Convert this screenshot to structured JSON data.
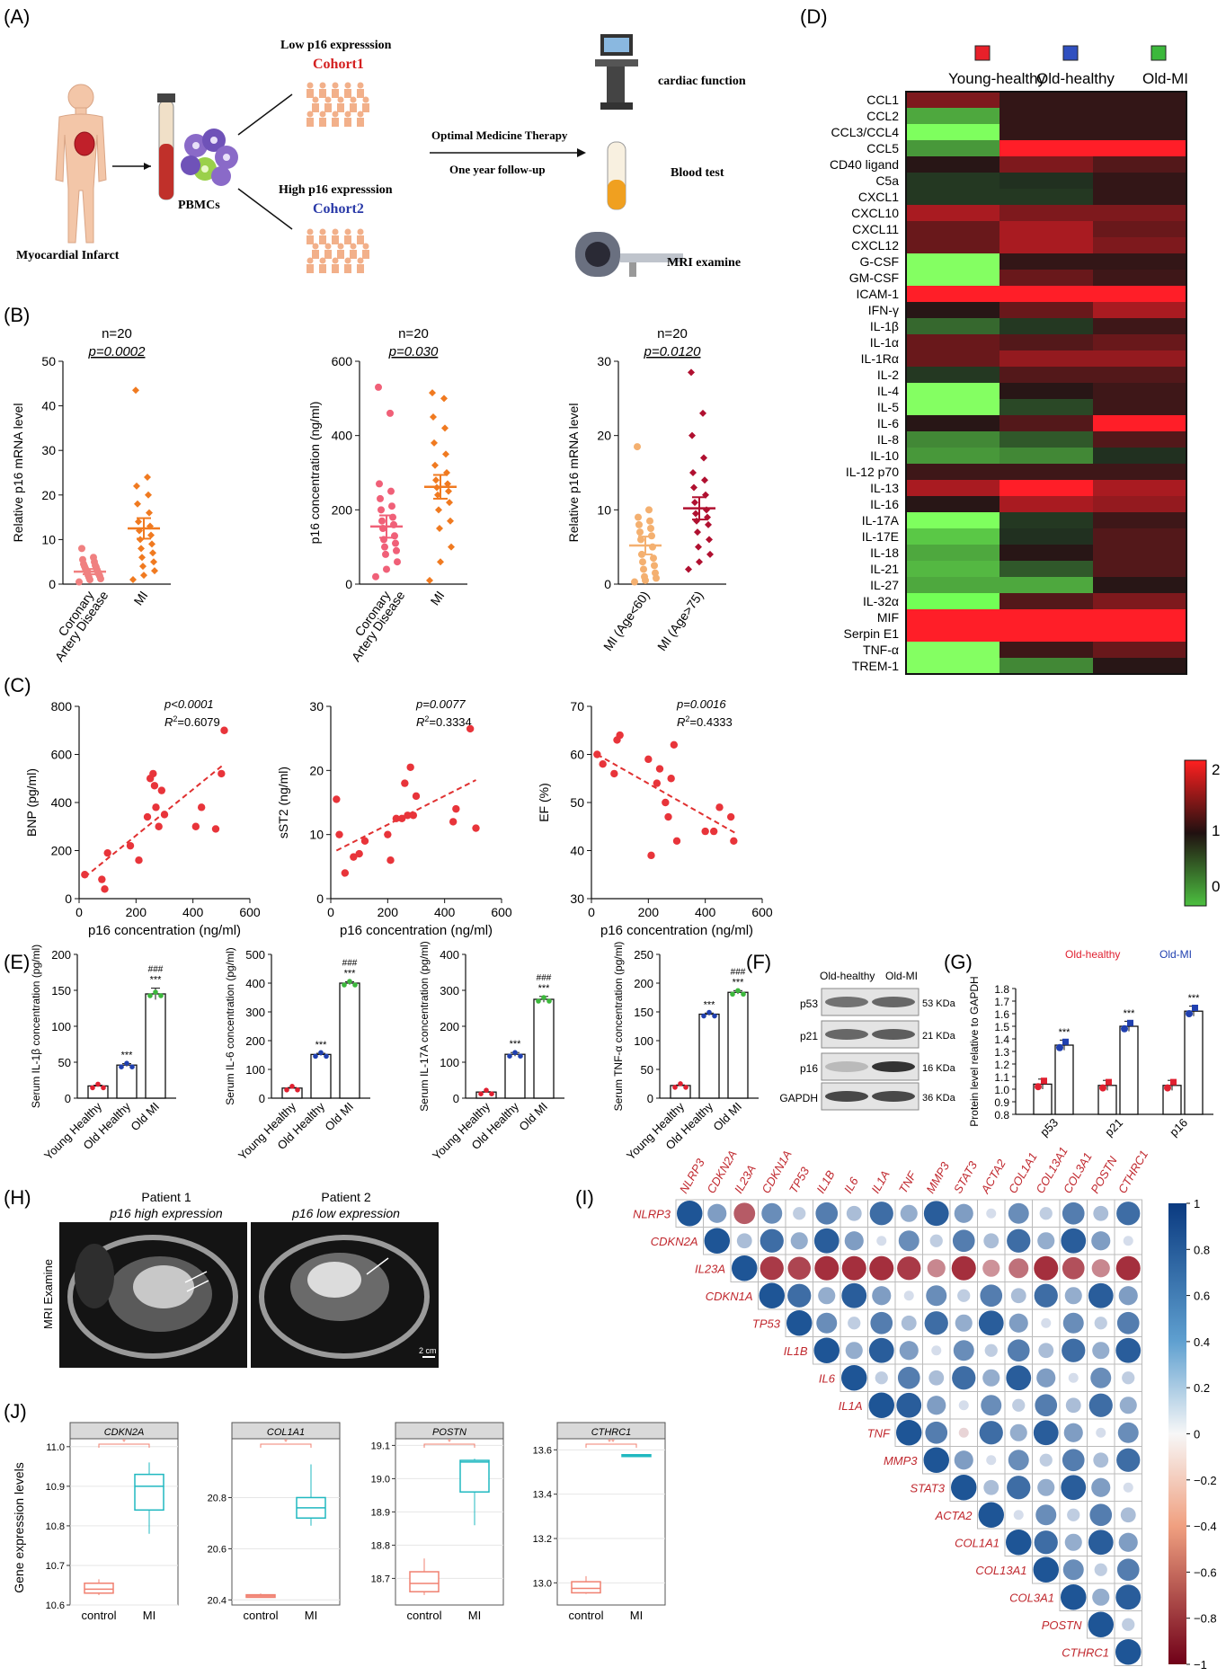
{
  "panel_labels": {
    "A": "(A)",
    "B": "(B)",
    "C": "(C)",
    "D": "(D)",
    "E": "(E)",
    "F": "(F)",
    "G": "(G)",
    "H": "(H)",
    "I": "(I)",
    "J": "(J)"
  },
  "panelA": {
    "myocardial": "Myocardial Infarct",
    "pbmcs": "PBMCs",
    "low": "Low p16 expresssion",
    "cohort1": "Cohort1",
    "high": "High p16 expresssion",
    "cohort2": "Cohort2",
    "therapy": "Optimal Medicine Therapy",
    "followup": "One year follow-up",
    "cardiac": "cardiac function",
    "blood": "Blood test",
    "mri": "MRI examine",
    "colors": {
      "cohort1": "#d42020",
      "cohort2": "#2a3aa8"
    }
  },
  "panelB": [
    {
      "n": "n=20",
      "p": "p=0.0002",
      "ylabel": "Relative p16 mRNA level",
      "yticks": [
        0,
        10,
        20,
        30,
        40,
        50
      ],
      "ymax": 50,
      "groups": [
        {
          "label": [
            "Coronary",
            "Artery Disease"
          ],
          "color": "#f08080",
          "mean": 2.8,
          "sem": 0.6,
          "points": [
            0.5,
            1,
            1.2,
            1.5,
            1.8,
            2,
            2.2,
            2.5,
            2.7,
            3,
            3.2,
            3.5,
            3.8,
            4,
            4.2,
            4.5,
            5,
            5.5,
            6,
            8
          ]
        },
        {
          "label": [
            "MI"
          ],
          "color": "#f07a20",
          "mean": 12.5,
          "sem": 2.3,
          "points": [
            1,
            2,
            3,
            4,
            5,
            6,
            7,
            8,
            9,
            10,
            11,
            12,
            13,
            14,
            16,
            18,
            20,
            22,
            24,
            43.5
          ]
        }
      ]
    },
    {
      "n": "n=20",
      "p": "p=0.030",
      "ylabel": "p16 concentration (ng/ml)",
      "yticks": [
        0,
        200,
        400,
        600
      ],
      "ymax": 600,
      "groups": [
        {
          "label": [
            "Coronary",
            "Artery Disease"
          ],
          "color": "#f06078",
          "mean": 155,
          "sem": 30,
          "points": [
            20,
            40,
            60,
            80,
            90,
            100,
            110,
            120,
            130,
            150,
            160,
            170,
            180,
            200,
            210,
            230,
            250,
            270,
            460,
            530
          ]
        },
        {
          "label": [
            "MI"
          ],
          "color": "#f07a20",
          "mean": 262,
          "sem": 32,
          "points": [
            10,
            60,
            100,
            150,
            170,
            200,
            220,
            240,
            250,
            260,
            270,
            280,
            300,
            320,
            350,
            380,
            420,
            450,
            500,
            515
          ]
        }
      ]
    },
    {
      "n": "n=20",
      "p": "p=0.0120",
      "ylabel": "Relative p16 mRNA level",
      "yticks": [
        0,
        10,
        20,
        30
      ],
      "ymax": 30,
      "groups": [
        {
          "label": [
            "MI (Age<60)"
          ],
          "color": "#f4b070",
          "mean": 5.2,
          "sem": 1.2,
          "points": [
            0.3,
            0.5,
            0.8,
            1,
            1.5,
            2,
            2.5,
            3,
            3.5,
            4,
            5,
            6,
            6.5,
            7,
            7.5,
            8,
            8.5,
            9,
            10,
            18.5
          ]
        },
        {
          "label": [
            "MI (Age>75)"
          ],
          "color": "#b01030",
          "mean": 10.2,
          "sem": 1.5,
          "points": [
            2,
            3,
            4,
            5,
            6,
            7,
            8,
            8.5,
            9,
            9.5,
            10,
            11,
            12,
            13,
            14,
            15,
            17,
            20,
            23,
            28.5
          ]
        }
      ]
    }
  ],
  "panelC": [
    {
      "p": "p<0.0001",
      "r2": "=0.6079",
      "ylabel": "BNP (pg/ml)",
      "xlabel": "p16 concentration (ng/ml)",
      "yticks": [
        0,
        200,
        400,
        600,
        800
      ],
      "ymin": 0,
      "ymax": 800,
      "xticks": [
        0,
        200,
        400,
        600
      ],
      "xmax": 600,
      "points": [
        [
          20,
          100
        ],
        [
          80,
          80
        ],
        [
          90,
          40
        ],
        [
          100,
          190
        ],
        [
          180,
          220
        ],
        [
          210,
          160
        ],
        [
          240,
          340
        ],
        [
          250,
          500
        ],
        [
          260,
          520
        ],
        [
          265,
          470
        ],
        [
          270,
          380
        ],
        [
          280,
          300
        ],
        [
          290,
          450
        ],
        [
          300,
          350
        ],
        [
          410,
          300
        ],
        [
          430,
          380
        ],
        [
          480,
          290
        ],
        [
          500,
          520
        ],
        [
          510,
          700
        ]
      ],
      "fit": [
        [
          20,
          90
        ],
        [
          510,
          560
        ]
      ]
    },
    {
      "p": "p=0.0077",
      "r2": "=0.3334",
      "ylabel": "sST2 (ng/ml)",
      "xlabel": "p16 concentration (ng/ml)",
      "yticks": [
        0,
        10,
        20,
        30
      ],
      "ymin": 0,
      "ymax": 30,
      "xticks": [
        0,
        200,
        400,
        600
      ],
      "xmax": 600,
      "points": [
        [
          20,
          15.5
        ],
        [
          30,
          10
        ],
        [
          50,
          4
        ],
        [
          80,
          6.5
        ],
        [
          100,
          7
        ],
        [
          120,
          9
        ],
        [
          200,
          10
        ],
        [
          210,
          6
        ],
        [
          230,
          12.5
        ],
        [
          250,
          12.5
        ],
        [
          260,
          18
        ],
        [
          270,
          13
        ],
        [
          280,
          20.5
        ],
        [
          290,
          13
        ],
        [
          300,
          16
        ],
        [
          430,
          12
        ],
        [
          440,
          14
        ],
        [
          490,
          26.5
        ],
        [
          510,
          11
        ]
      ],
      "fit": [
        [
          20,
          7.5
        ],
        [
          510,
          18.5
        ]
      ]
    },
    {
      "p": "p=0.0016",
      "r2": "=0.4333",
      "ylabel": "EF (%)",
      "xlabel": "p16 concentration (ng/ml)",
      "yticks": [
        30,
        40,
        50,
        60,
        70
      ],
      "ymin": 30,
      "ymax": 70,
      "xticks": [
        0,
        200,
        400,
        600
      ],
      "xmax": 600,
      "points": [
        [
          20,
          60
        ],
        [
          40,
          58
        ],
        [
          80,
          56
        ],
        [
          90,
          63
        ],
        [
          100,
          64
        ],
        [
          200,
          59
        ],
        [
          210,
          39
        ],
        [
          230,
          54
        ],
        [
          240,
          57
        ],
        [
          260,
          50
        ],
        [
          270,
          47
        ],
        [
          280,
          55
        ],
        [
          290,
          62
        ],
        [
          300,
          42
        ],
        [
          400,
          44
        ],
        [
          430,
          44
        ],
        [
          450,
          49
        ],
        [
          490,
          47
        ],
        [
          500,
          42
        ]
      ],
      "fit": [
        [
          20,
          60
        ],
        [
          510,
          43.5
        ]
      ]
    }
  ],
  "panelD": {
    "legend": [
      {
        "name": "Young-healthy",
        "color": "#e8202a"
      },
      {
        "name": "Old-healthy",
        "color": "#3050c0"
      },
      {
        "name": "Old-MI",
        "color": "#3cb83c"
      }
    ],
    "rows": [
      "CCL1",
      "CCL2",
      "CCL3/CCL4",
      "CCL5",
      "CD40 ligand",
      "C5a",
      "CXCL1",
      "CXCL10",
      "CXCL11",
      "CXCL12",
      "G-CSF",
      "GM-CSF",
      "ICAM-1",
      "IFN-γ",
      "IL-1β",
      "IL-1α",
      "IL-1Rα",
      "IL-2",
      "IL-4",
      "IL-5",
      "IL-6",
      "IL-8",
      "IL-10",
      "IL-12 p70",
      "IL-13",
      "IL-16",
      "IL-17A",
      "IL-17E",
      "IL-18",
      "IL-21",
      "IL-27",
      "IL-32α",
      "MIF",
      "Serpin E1",
      "TNF-α",
      "TREM-1"
    ],
    "values": [
      [
        1.4,
        1.05,
        1.05
      ],
      [
        0.2,
        1.05,
        1.05
      ],
      [
        -0.6,
        1.05,
        1.05
      ],
      [
        0.3,
        2,
        2
      ],
      [
        1.0,
        1.4,
        1.2
      ],
      [
        0.9,
        0.95,
        1.05
      ],
      [
        0.9,
        0.9,
        1.05
      ],
      [
        1.6,
        1.4,
        1.4
      ],
      [
        1.3,
        1.6,
        1.3
      ],
      [
        1.3,
        1.6,
        1.4
      ],
      [
        -0.7,
        1.05,
        1.05
      ],
      [
        -0.7,
        1.3,
        1.1
      ],
      [
        2,
        2,
        2
      ],
      [
        1.0,
        1.3,
        1.6
      ],
      [
        0.6,
        0.9,
        1.1
      ],
      [
        1.3,
        1.2,
        1.3
      ],
      [
        1.3,
        1.5,
        1.5
      ],
      [
        0.9,
        1.2,
        1.2
      ],
      [
        -0.7,
        1.0,
        1.1
      ],
      [
        -0.7,
        0.8,
        1.1
      ],
      [
        1.0,
        1.2,
        2
      ],
      [
        0.4,
        0.7,
        1.2
      ],
      [
        0.3,
        0.4,
        0.95
      ],
      [
        1.1,
        1.1,
        1.1
      ],
      [
        1.6,
        2,
        1.6
      ],
      [
        1.0,
        1.6,
        1.5
      ],
      [
        -0.6,
        0.9,
        1.1
      ],
      [
        0.0,
        0.95,
        1.2
      ],
      [
        0.2,
        1.0,
        1.2
      ],
      [
        0.1,
        0.7,
        1.2
      ],
      [
        0.2,
        0.2,
        1.0
      ],
      [
        -0.4,
        1.2,
        1.4
      ],
      [
        2,
        2,
        2
      ],
      [
        2,
        2,
        2
      ],
      [
        -0.7,
        1.1,
        1.3
      ],
      [
        -0.7,
        0.4,
        1.0
      ]
    ],
    "scale": {
      "max_label": "2",
      "mid_label": "1",
      "min_label": "0"
    }
  },
  "panelE": [
    {
      "ylabel": "Serum IL-1β concentration (pg/ml)",
      "yticks": [
        0,
        50,
        100,
        150,
        200
      ],
      "ymax": 200,
      "values": [
        17,
        46,
        145
      ],
      "err": [
        1,
        2,
        8
      ]
    },
    {
      "ylabel": "Serum IL-6 concentration (pg/ml)",
      "yticks": [
        0,
        100,
        200,
        300,
        400,
        500
      ],
      "ymax": 500,
      "values": [
        35,
        152,
        400
      ],
      "err": [
        2,
        4,
        5
      ]
    },
    {
      "ylabel": "Serum IL-17A concentration (pg/ml)",
      "yticks": [
        0,
        100,
        200,
        300,
        400
      ],
      "ymax": 400,
      "values": [
        17,
        122,
        275
      ],
      "err": [
        1,
        5,
        8
      ]
    },
    {
      "ylabel": "Serum TNF-α concentration (pg/ml)",
      "yticks": [
        0,
        50,
        100,
        150,
        200,
        250
      ],
      "ymax": 250,
      "values": [
        22,
        146,
        184
      ],
      "err": [
        1,
        2,
        3
      ]
    }
  ],
  "panelE_common": {
    "groups": [
      "Young Healthy",
      "Old Healthy",
      "Old MI"
    ],
    "colors": [
      "#e02030",
      "#2040b0",
      "#3cb83c"
    ],
    "sig1": "***",
    "sig2": "###"
  },
  "panelF": {
    "cols": [
      "Old-healthy",
      "Old-MI"
    ],
    "rows": [
      {
        "name": "p53",
        "kda": "53 KDa"
      },
      {
        "name": "p21",
        "kda": "21 KDa"
      },
      {
        "name": "p16",
        "kda": "16 KDa"
      },
      {
        "name": "GAPDH",
        "kda": "36 KDa"
      }
    ]
  },
  "panelG": {
    "legend1": "Old-healthy",
    "legend2": "Old-MI",
    "ylabel": "Protein level relative to GAPDH",
    "yticks": [
      0.8,
      0.9,
      1.0,
      1.1,
      1.2,
      1.3,
      1.4,
      1.5,
      1.6,
      1.7,
      1.8
    ],
    "ymin": 0.8,
    "ymax": 1.8,
    "categories": [
      "p53",
      "p21",
      "p16"
    ],
    "old_healthy": [
      1.04,
      1.03,
      1.03
    ],
    "old_mi": [
      1.35,
      1.5,
      1.62
    ],
    "sig": "***"
  },
  "panelH": {
    "patient1": "Patient 1",
    "p1expr": "p16 high expression",
    "patient2": "Patient 2",
    "p2expr": "p16 low expression",
    "ylabel": "MRI Examine",
    "scale": "2 cm"
  },
  "panelI": {
    "genes": [
      "NLRP3",
      "CDKN2A",
      "IL23A",
      "CDKN1A",
      "TP53",
      "IL1B",
      "IL6",
      "IL1A",
      "TNF",
      "MMP3",
      "STAT3",
      "ACTA2",
      "COL1A1",
      "COL13A1",
      "COL3A1",
      "POSTN",
      "CTHRC1"
    ],
    "colorbar": [
      "1",
      "0.8",
      "0.6",
      "0.4",
      "0.2",
      "0",
      "−0.2",
      "−0.4",
      "−0.6",
      "−0.8",
      "−1"
    ]
  },
  "panelJ": {
    "ylabel": "Gene expression levels",
    "xcats": [
      "control",
      "MI"
    ],
    "plots": [
      {
        "gene": "CDKN2A",
        "yticks": [
          10.6,
          10.7,
          10.8,
          10.9,
          11.0
        ],
        "ymin": 10.6,
        "ymax": 11.02,
        "sig": "*",
        "control": [
          10.625,
          10.63,
          10.64,
          10.655,
          10.665
        ],
        "mi": [
          10.78,
          10.84,
          10.9,
          10.93,
          10.96
        ]
      },
      {
        "gene": "COL1A1",
        "yticks": [
          20.4,
          20.6,
          20.8
        ],
        "ymin": 20.38,
        "ymax": 21.03,
        "sig": "*",
        "control": [
          20.41,
          20.41,
          20.415,
          20.42,
          20.425
        ],
        "mi": [
          20.69,
          20.72,
          20.76,
          20.8,
          20.93
        ]
      },
      {
        "gene": "POSTN",
        "yticks": [
          18.7,
          18.8,
          18.9,
          19.0,
          19.1
        ],
        "ymin": 18.62,
        "ymax": 19.12,
        "sig": "*",
        "control": [
          18.65,
          18.66,
          18.685,
          18.72,
          18.76
        ],
        "mi": [
          18.86,
          18.96,
          19.05,
          19.055,
          19.06
        ]
      },
      {
        "gene": "CTHRC1",
        "yticks": [
          13.0,
          13.2,
          13.4,
          13.6
        ],
        "ymin": 12.9,
        "ymax": 13.65,
        "sig": "**",
        "control": [
          12.95,
          12.955,
          12.975,
          13.005,
          13.03
        ],
        "mi": [
          13.57,
          13.57,
          13.575,
          13.578,
          13.58
        ]
      }
    ]
  }
}
